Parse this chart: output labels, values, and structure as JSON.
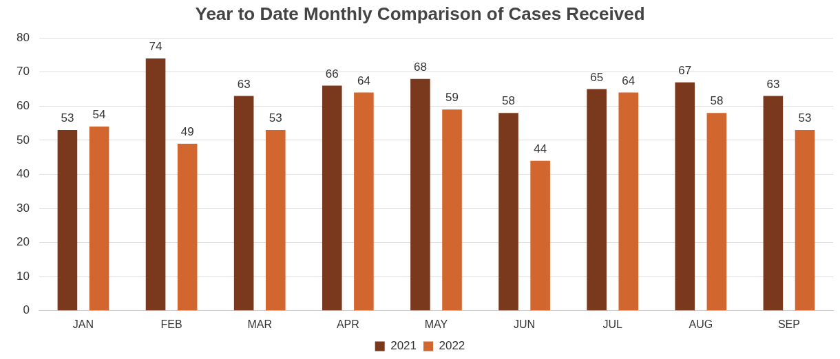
{
  "chart_data": {
    "type": "bar",
    "title": "Year to Date Monthly Comparison of Cases Received",
    "categories": [
      "JAN",
      "FEB",
      "MAR",
      "APR",
      "MAY",
      "JUN",
      "JUL",
      "AUG",
      "SEP"
    ],
    "series": [
      {
        "name": "2021",
        "color": "#7a391d",
        "values": [
          53,
          74,
          63,
          66,
          68,
          58,
          65,
          67,
          63
        ]
      },
      {
        "name": "2022",
        "color": "#d2662f",
        "values": [
          54,
          49,
          53,
          64,
          59,
          44,
          64,
          58,
          53
        ]
      }
    ],
    "ylim": [
      0,
      80
    ],
    "yticks": [
      0,
      10,
      20,
      30,
      40,
      50,
      60,
      70,
      80
    ],
    "grid": "y",
    "legend": "bottom",
    "data_labels": true
  }
}
